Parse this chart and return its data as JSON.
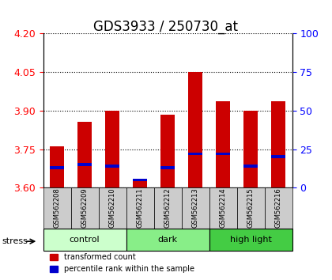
{
  "title": "GDS3933 / 250730_at",
  "samples": [
    "GSM562208",
    "GSM562209",
    "GSM562210",
    "GSM562211",
    "GSM562212",
    "GSM562213",
    "GSM562214",
    "GSM562215",
    "GSM562216"
  ],
  "red_values": [
    3.76,
    3.855,
    3.9,
    3.625,
    3.885,
    4.05,
    3.935,
    3.9,
    3.935
  ],
  "blue_percentiles": [
    13,
    15,
    14,
    5,
    13,
    22,
    22,
    14,
    20
  ],
  "ylim_left": [
    3.6,
    4.2
  ],
  "ylim_right": [
    0,
    100
  ],
  "yticks_left": [
    3.6,
    3.75,
    3.9,
    4.05,
    4.2
  ],
  "yticks_right": [
    0,
    25,
    50,
    75,
    100
  ],
  "groups": [
    {
      "label": "control",
      "indices": [
        0,
        1,
        2
      ],
      "color": "#ccffcc"
    },
    {
      "label": "dark",
      "indices": [
        3,
        4,
        5
      ],
      "color": "#88ee88"
    },
    {
      "label": "high light",
      "indices": [
        6,
        7,
        8
      ],
      "color": "#44cc44"
    }
  ],
  "bar_color_red": "#cc0000",
  "bar_color_blue": "#0000cc",
  "bar_width": 0.5,
  "stress_label": "stress",
  "legend_red": "transformed count",
  "legend_blue": "percentile rank within the sample",
  "title_fontsize": 12,
  "tick_fontsize": 9
}
